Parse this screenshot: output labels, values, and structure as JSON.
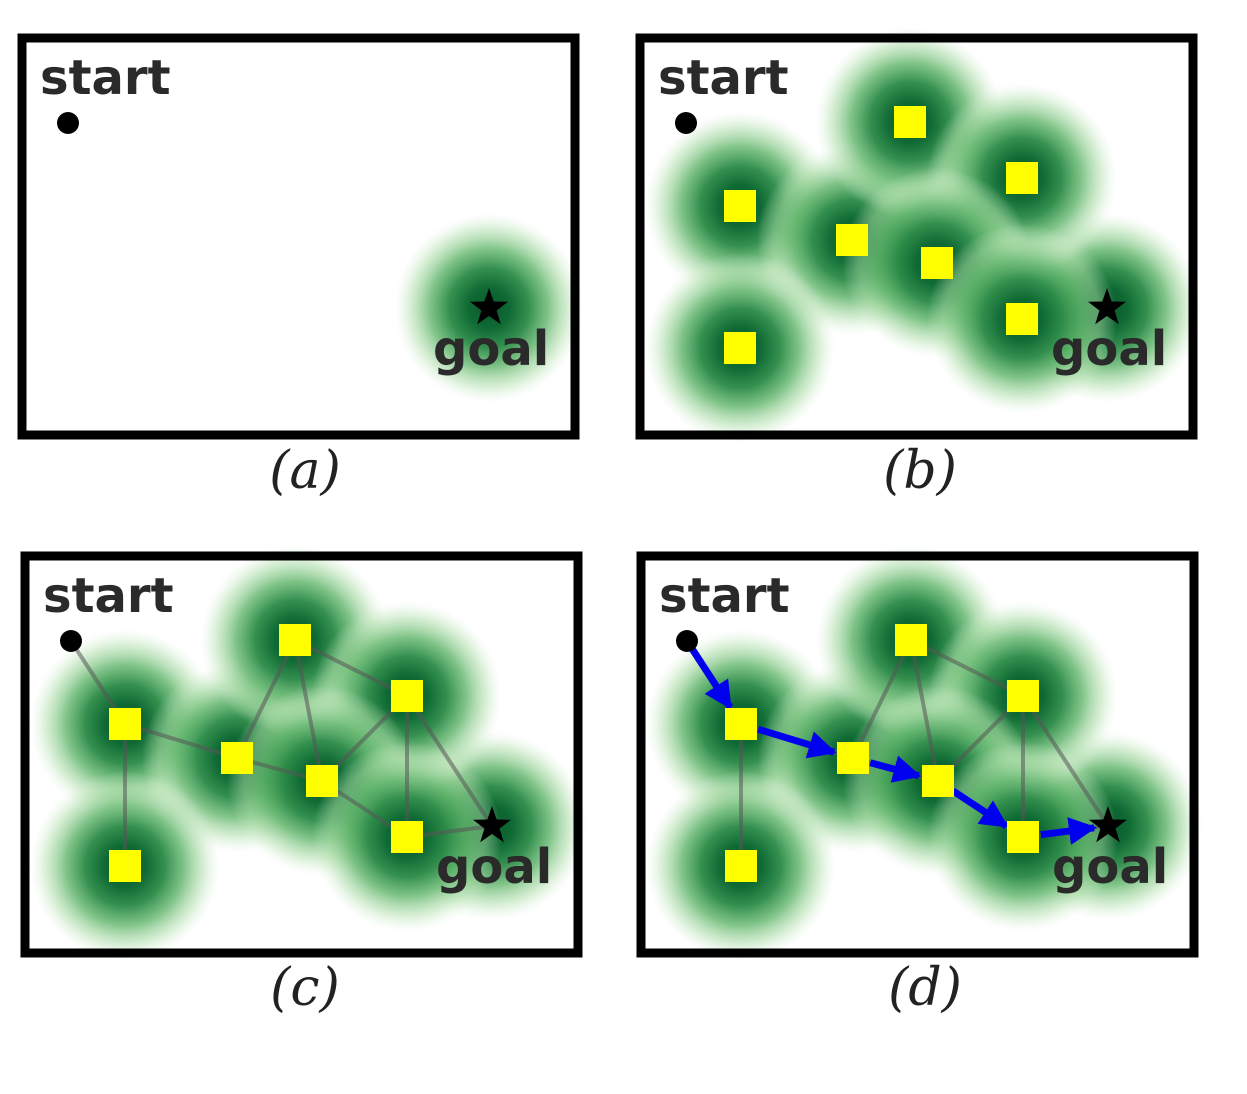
{
  "labels": {
    "start": "start",
    "goal": "goal"
  },
  "panels": [
    {
      "id": "a",
      "caption": "(a)",
      "nodes": false,
      "edges": false,
      "path": false
    },
    {
      "id": "b",
      "caption": "(b)",
      "nodes": true,
      "edges": false,
      "path": false
    },
    {
      "id": "c",
      "caption": "(c)",
      "nodes": true,
      "edges": true,
      "path": false
    },
    {
      "id": "d",
      "caption": "(d)",
      "nodes": true,
      "edges": true,
      "path": true
    }
  ],
  "graph": {
    "nodes": [
      "n1",
      "n2",
      "n3",
      "n4",
      "n5",
      "n6",
      "n7"
    ],
    "edges": [
      [
        "start",
        "n1"
      ],
      [
        "n1",
        "n2"
      ],
      [
        "n1",
        "n7"
      ],
      [
        "n2",
        "n3"
      ],
      [
        "n2",
        "n5"
      ],
      [
        "n3",
        "n5"
      ],
      [
        "n3",
        "n4"
      ],
      [
        "n4",
        "n5"
      ],
      [
        "n4",
        "n6"
      ],
      [
        "n4",
        "goal"
      ],
      [
        "n5",
        "n6"
      ],
      [
        "n6",
        "goal"
      ]
    ],
    "path": [
      "start",
      "n1",
      "n2",
      "n5",
      "n6",
      "goal"
    ]
  },
  "colors": {
    "frame": "#000000",
    "halo_light": "#cbeac6",
    "halo_mid": "#4fa85c",
    "halo_dark": "#0f5f2e",
    "node": "#ffff00",
    "edge": "#555555",
    "path_arrow": "#0000ee"
  },
  "icons": {
    "start_marker": "dot-icon",
    "goal_marker": "star-icon",
    "node_marker": "square-icon"
  }
}
